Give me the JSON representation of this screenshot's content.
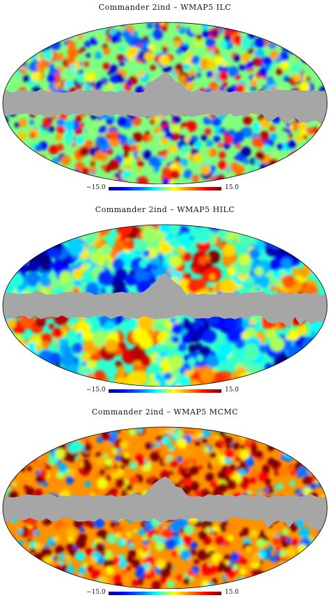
{
  "panels": [
    {
      "title": "Commander 2ind – WMAP5 ILC",
      "colorbar_min": "−15.0",
      "colorbar_max": "15.0",
      "level": 0.5
    },
    {
      "title": "Commander 2ind – WMAP5 HILC",
      "colorbar_min": "−15.0",
      "colorbar_max": "15.0",
      "level": 0.45
    },
    {
      "title": "Commander 2ind – WMAP5 MCMC",
      "colorbar_min": "−15.0",
      "colorbar_max": "15.0",
      "level": 0.7
    }
  ],
  "colors": {
    "mask": "#a6a6a6",
    "outline": "#000000"
  }
}
